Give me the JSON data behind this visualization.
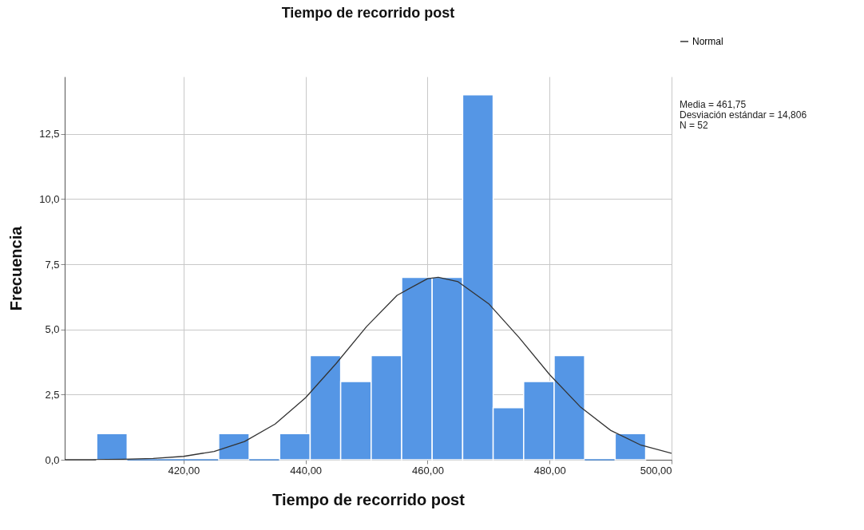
{
  "chart_data": {
    "type": "histogram",
    "title": "Tiempo de recorrido post",
    "xlabel": "Tiempo de recorrido post",
    "ylabel": "Frecuencia",
    "bins": [
      405.75,
      410.75,
      415.75,
      420.75,
      425.75,
      430.75,
      435.75,
      440.75,
      445.75,
      450.75,
      455.75,
      460.75,
      465.75,
      470.75,
      475.75,
      480.75,
      485.75,
      490.75,
      495.75
    ],
    "values": [
      1,
      0,
      0,
      0,
      1,
      0,
      1,
      4,
      3,
      4,
      7,
      7,
      14,
      2,
      3,
      4,
      0,
      1
    ],
    "color": "#5596e5",
    "series": [
      {
        "type": "line",
        "name": "Normal",
        "color": "#333333",
        "x": [
          400.5,
          405,
          410,
          415,
          420,
          425,
          430,
          435,
          440,
          445,
          450,
          455,
          460,
          461.75,
          465,
          470,
          475,
          480,
          485,
          490,
          495,
          500
        ],
        "values": [
          0.0,
          0.0,
          0.02,
          0.05,
          0.13,
          0.32,
          0.7,
          1.37,
          2.38,
          3.69,
          5.11,
          6.31,
          6.95,
          7.0,
          6.83,
          5.99,
          4.69,
          3.27,
          2.04,
          1.13,
          0.56,
          0.25
        ]
      }
    ],
    "xlim": [
      400.5,
      500
    ],
    "ylim": [
      0,
      14.7
    ],
    "xticks": [
      {
        "value": 420,
        "label": "420,00"
      },
      {
        "value": 440,
        "label": "440,00"
      },
      {
        "value": 460,
        "label": "460,00"
      },
      {
        "value": 480,
        "label": "480,00"
      },
      {
        "value": 500,
        "label": "500,00"
      }
    ],
    "yticks": [
      {
        "value": 0,
        "label": "0,0"
      },
      {
        "value": 2.5,
        "label": "2,5"
      },
      {
        "value": 5,
        "label": "5,0"
      },
      {
        "value": 7.5,
        "label": "7,5"
      },
      {
        "value": 10,
        "label": "10,0"
      },
      {
        "value": 12.5,
        "label": "12,5"
      }
    ],
    "annotations": [
      "Media = 461,75",
      "Desviación estándar = 14,806",
      "N = 52"
    ],
    "grid": true,
    "legend": "top right",
    "line_style": "solid"
  }
}
